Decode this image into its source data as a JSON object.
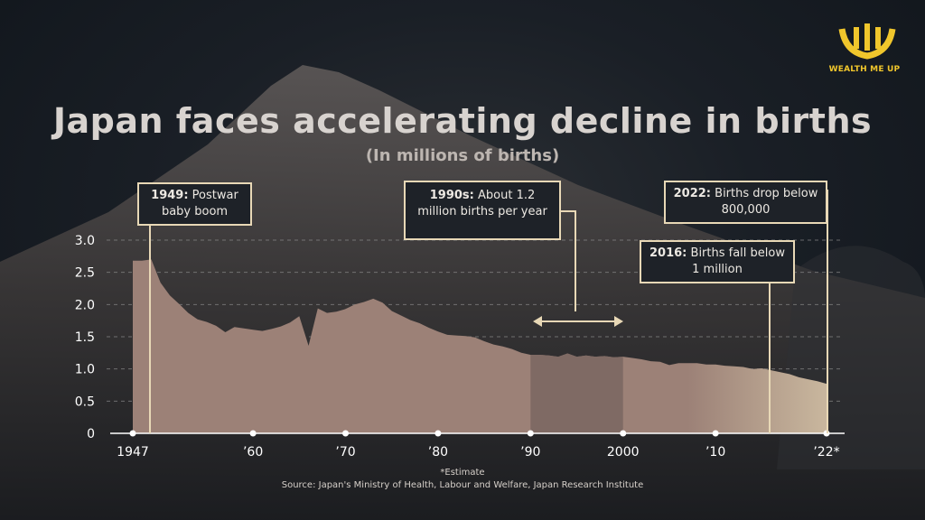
{
  "brand": {
    "name": "WEALTH ME UP",
    "logo_color": "#f0c62c"
  },
  "title": "Japan faces accelerating decline in births",
  "subtitle": "(In millions of births)",
  "footnote": "*Estimate",
  "source": "Source: Japan's Ministry of Health, Labour and Welfare, Japan Research Institute",
  "annotations": {
    "a1949": {
      "bold": "1949:",
      "text": " Postwar baby boom"
    },
    "a1990s": {
      "bold": "1990s:",
      "text": " About 1.2 million births per year"
    },
    "a2016": {
      "bold": "2016:",
      "text": " Births fall below 1 million"
    },
    "a2022": {
      "bold": "2022:",
      "text": " Births drop below 800,000"
    }
  },
  "chart_data": {
    "type": "area",
    "title": "Japan faces accelerating decline in births",
    "subtitle": "(In millions of births)",
    "ylim": [
      0,
      3.0
    ],
    "y_ticks": [
      "0",
      "0.5",
      "1.0",
      "1.5",
      "2.0",
      "2.5",
      "3.0"
    ],
    "x_ticks": [
      {
        "year": 1947,
        "label": "1947"
      },
      {
        "year": 1960,
        "label": "’60"
      },
      {
        "year": 1970,
        "label": "’70"
      },
      {
        "year": 1980,
        "label": "’80"
      },
      {
        "year": 1990,
        "label": "’90"
      },
      {
        "year": 2000,
        "label": "2000"
      },
      {
        "year": 2010,
        "label": "’10"
      },
      {
        "year": 2022,
        "label": "’22*"
      }
    ],
    "x_range": [
      1947,
      2022
    ],
    "highlight_range": [
      1990,
      2000
    ],
    "grid": true,
    "colors": {
      "fill": "#9c8177",
      "fill_light": "#c9b79e",
      "highlight": "#7a6660",
      "accent": "#e8d8b6"
    },
    "series": [
      {
        "x": [
          1947,
          1948,
          1949,
          1950,
          1951,
          1952,
          1953,
          1954,
          1955,
          1956,
          1957,
          1958,
          1959,
          1960,
          1961,
          1962,
          1963,
          1964,
          1965,
          1966,
          1967,
          1968,
          1969,
          1970,
          1971,
          1972,
          1973,
          1974,
          1975,
          1976,
          1977,
          1978,
          1979,
          1980,
          1981,
          1982,
          1983,
          1984,
          1985,
          1986,
          1987,
          1988,
          1989,
          1990,
          1991,
          1992,
          1993,
          1994,
          1995,
          1996,
          1997,
          1998,
          1999,
          2000,
          2001,
          2002,
          2003,
          2004,
          2005,
          2006,
          2007,
          2008,
          2009,
          2010,
          2011,
          2012,
          2013,
          2014,
          2015,
          2016,
          2017,
          2018,
          2019,
          2020,
          2021,
          2022
        ],
        "values": [
          2.68,
          2.68,
          2.7,
          2.34,
          2.14,
          2.01,
          1.87,
          1.77,
          1.73,
          1.67,
          1.57,
          1.65,
          1.63,
          1.61,
          1.59,
          1.62,
          1.66,
          1.72,
          1.82,
          1.36,
          1.94,
          1.87,
          1.89,
          1.93,
          2.0,
          2.04,
          2.09,
          2.03,
          1.9,
          1.83,
          1.76,
          1.71,
          1.64,
          1.58,
          1.53,
          1.52,
          1.51,
          1.49,
          1.43,
          1.38,
          1.35,
          1.31,
          1.25,
          1.22,
          1.22,
          1.21,
          1.19,
          1.24,
          1.19,
          1.21,
          1.19,
          1.2,
          1.18,
          1.19,
          1.17,
          1.15,
          1.12,
          1.11,
          1.06,
          1.09,
          1.09,
          1.09,
          1.07,
          1.07,
          1.05,
          1.04,
          1.03,
          1.0,
          1.01,
          0.98,
          0.95,
          0.92,
          0.87,
          0.84,
          0.81,
          0.77
        ]
      }
    ]
  }
}
